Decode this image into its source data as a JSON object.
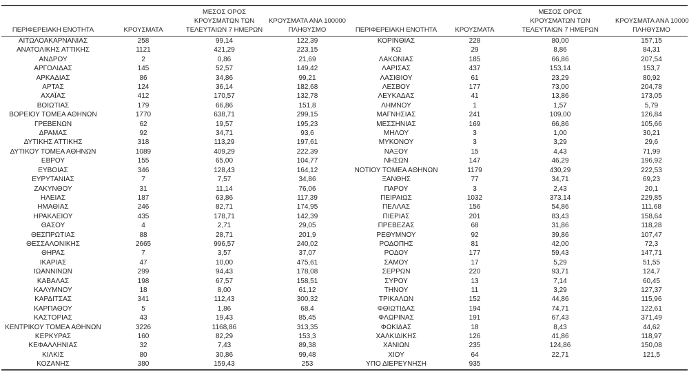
{
  "colors": {
    "text": "#262626",
    "line": "#4a4a4a",
    "background": "#ffffff"
  },
  "table": {
    "headers": {
      "region": "ΠΕΡΙΦΕΡΕΙΑΚΗ ΕΝΟΤΗΤΑ",
      "cases": "ΚΡΟΥΣΜΑΤΑ",
      "avg7_line1": "ΜΕΣΟΣ ΟΡΟΣ",
      "avg7_line2": "ΚΡΟΥΣΜΑΤΩΝ ΤΩΝ",
      "avg7_line3": "ΤΕΛΕΥΤΑΙΩΝ 7 ΗΜΕΡΩΝ",
      "per100k_line1": "ΚΡΟΥΣΜΑΤΑ ΑΝΑ 100000",
      "per100k_line2": "ΠΛΗΘΥΣΜΟ"
    },
    "left_rows": [
      {
        "region": "ΑΙΤΩΛΟΑΚΑΡΝΑΝΙΑΣ",
        "cases": "258",
        "avg7": "99,14",
        "per100k": "122,39"
      },
      {
        "region": "ΑΝΑΤΟΛΙΚΗΣ ΑΤΤΙΚΗΣ",
        "cases": "1121",
        "avg7": "421,29",
        "per100k": "223,15"
      },
      {
        "region": "ΑΝΔΡΟΥ",
        "cases": "2",
        "avg7": "0,86",
        "per100k": "21,69"
      },
      {
        "region": "ΑΡΓΟΛΙΔΑΣ",
        "cases": "145",
        "avg7": "52,57",
        "per100k": "149,42"
      },
      {
        "region": "ΑΡΚΑΔΙΑΣ",
        "cases": "86",
        "avg7": "34,86",
        "per100k": "99,21"
      },
      {
        "region": "ΑΡΤΑΣ",
        "cases": "124",
        "avg7": "36,14",
        "per100k": "182,68"
      },
      {
        "region": "ΑΧΑΪΑΣ",
        "cases": "412",
        "avg7": "170,57",
        "per100k": "132,78"
      },
      {
        "region": "ΒΟΙΩΤΙΑΣ",
        "cases": "179",
        "avg7": "66,86",
        "per100k": "151,8"
      },
      {
        "region": "ΒΟΡΕΙΟΥ ΤΟΜΕΑ ΑΘΗΝΩΝ",
        "cases": "1770",
        "avg7": "638,71",
        "per100k": "299,15"
      },
      {
        "region": "ΓΡΕΒΕΝΩΝ",
        "cases": "62",
        "avg7": "19,57",
        "per100k": "195,23"
      },
      {
        "region": "ΔΡΑΜΑΣ",
        "cases": "92",
        "avg7": "34,71",
        "per100k": "93,6"
      },
      {
        "region": "ΔΥΤΙΚΗΣ ΑΤΤΙΚΗΣ",
        "cases": "318",
        "avg7": "113,29",
        "per100k": "197,61"
      },
      {
        "region": "ΔΥΤΙΚΟΥ ΤΟΜΕΑ ΑΘΗΝΩΝ",
        "cases": "1089",
        "avg7": "409,29",
        "per100k": "222,39"
      },
      {
        "region": "ΕΒΡΟΥ",
        "cases": "155",
        "avg7": "65,00",
        "per100k": "104,77"
      },
      {
        "region": "ΕΥΒΟΙΑΣ",
        "cases": "346",
        "avg7": "128,43",
        "per100k": "164,12"
      },
      {
        "region": "ΕΥΡΥΤΑΝΙΑΣ",
        "cases": "7",
        "avg7": "7,57",
        "per100k": "34,86"
      },
      {
        "region": "ΖΑΚΥΝΘΟΥ",
        "cases": "31",
        "avg7": "11,14",
        "per100k": "76,06"
      },
      {
        "region": "ΗΛΕΙΑΣ",
        "cases": "187",
        "avg7": "63,86",
        "per100k": "117,39"
      },
      {
        "region": "ΗΜΑΘΙΑΣ",
        "cases": "246",
        "avg7": "82,71",
        "per100k": "174,95"
      },
      {
        "region": "ΗΡΑΚΛΕΙΟΥ",
        "cases": "435",
        "avg7": "178,71",
        "per100k": "142,39"
      },
      {
        "region": "ΘΑΣΟΥ",
        "cases": "4",
        "avg7": "2,71",
        "per100k": "29,05"
      },
      {
        "region": "ΘΕΣΠΡΩΤΙΑΣ",
        "cases": "88",
        "avg7": "28,71",
        "per100k": "201,9"
      },
      {
        "region": "ΘΕΣΣΑΛΟΝΙΚΗΣ",
        "cases": "2665",
        "avg7": "996,57",
        "per100k": "240,02"
      },
      {
        "region": "ΘΗΡΑΣ",
        "cases": "7",
        "avg7": "3,57",
        "per100k": "37,07"
      },
      {
        "region": "ΙΚΑΡΙΑΣ",
        "cases": "47",
        "avg7": "10,00",
        "per100k": "475,61"
      },
      {
        "region": "ΙΩΑΝΝΙΝΩΝ",
        "cases": "299",
        "avg7": "94,43",
        "per100k": "178,08"
      },
      {
        "region": "ΚΑΒΑΛΑΣ",
        "cases": "198",
        "avg7": "67,57",
        "per100k": "158,51"
      },
      {
        "region": "ΚΑΛΥΜΝΟΥ",
        "cases": "18",
        "avg7": "8,00",
        "per100k": "61,12"
      },
      {
        "region": "ΚΑΡΔΙΤΣΑΣ",
        "cases": "341",
        "avg7": "112,43",
        "per100k": "300,32"
      },
      {
        "region": "ΚΑΡΠΑΘΟΥ",
        "cases": "5",
        "avg7": "1,86",
        "per100k": "68,4"
      },
      {
        "region": "ΚΑΣΤΟΡΙΑΣ",
        "cases": "43",
        "avg7": "19,43",
        "per100k": "85,45"
      },
      {
        "region": "ΚΕΝΤΡΙΚΟΥ ΤΟΜΕΑ ΑΘΗΝΩΝ",
        "cases": "3226",
        "avg7": "1168,86",
        "per100k": "313,35"
      },
      {
        "region": "ΚΕΡΚΥΡΑΣ",
        "cases": "160",
        "avg7": "82,29",
        "per100k": "153,3"
      },
      {
        "region": "ΚΕΦΑΛΛΗΝΙΑΣ",
        "cases": "32",
        "avg7": "7,43",
        "per100k": "89,38"
      },
      {
        "region": "ΚΙΛΚΙΣ",
        "cases": "80",
        "avg7": "30,86",
        "per100k": "99,48"
      },
      {
        "region": "ΚΟΖΑΝΗΣ",
        "cases": "380",
        "avg7": "159,43",
        "per100k": "253"
      }
    ],
    "right_rows": [
      {
        "region": "ΚΟΡΙΝΘΙΑΣ",
        "cases": "228",
        "avg7": "80,00",
        "per100k": "157,15"
      },
      {
        "region": "ΚΩ",
        "cases": "29",
        "avg7": "8,86",
        "per100k": "84,31"
      },
      {
        "region": "ΛΑΚΩΝΙΑΣ",
        "cases": "185",
        "avg7": "66,86",
        "per100k": "207,54"
      },
      {
        "region": "ΛΑΡΙΣΑΣ",
        "cases": "437",
        "avg7": "153,14",
        "per100k": "153,7"
      },
      {
        "region": "ΛΑΣΙΘΙΟΥ",
        "cases": "61",
        "avg7": "23,29",
        "per100k": "80,92"
      },
      {
        "region": "ΛΕΣΒΟΥ",
        "cases": "177",
        "avg7": "73,00",
        "per100k": "204,78"
      },
      {
        "region": "ΛΕΥΚΑΔΑΣ",
        "cases": "41",
        "avg7": "13,86",
        "per100k": "173,05"
      },
      {
        "region": "ΛΗΜΝΟΥ",
        "cases": "1",
        "avg7": "1,57",
        "per100k": "5,79"
      },
      {
        "region": "ΜΑΓΝΗΣΙΑΣ",
        "cases": "241",
        "avg7": "109,00",
        "per100k": "126,84"
      },
      {
        "region": "ΜΕΣΣΗΝΙΑΣ",
        "cases": "169",
        "avg7": "66,86",
        "per100k": "105,66"
      },
      {
        "region": "ΜΗΛΟΥ",
        "cases": "3",
        "avg7": "1,00",
        "per100k": "30,21"
      },
      {
        "region": "ΜΥΚΟΝΟΥ",
        "cases": "3",
        "avg7": "3,29",
        "per100k": "29,6"
      },
      {
        "region": "ΝΑΞΟΥ",
        "cases": "15",
        "avg7": "4,43",
        "per100k": "71,99"
      },
      {
        "region": "ΝΗΣΩΝ",
        "cases": "147",
        "avg7": "46,29",
        "per100k": "196,92"
      },
      {
        "region": "ΝΟΤΙΟΥ ΤΟΜΕΑ ΑΘΗΝΩΝ",
        "cases": "1179",
        "avg7": "430,29",
        "per100k": "222,53"
      },
      {
        "region": "ΞΑΝΘΗΣ",
        "cases": "77",
        "avg7": "34,71",
        "per100k": "69,23"
      },
      {
        "region": "ΠΑΡΟΥ",
        "cases": "3",
        "avg7": "2,43",
        "per100k": "20,1"
      },
      {
        "region": "ΠΕΙΡΑΙΩΣ",
        "cases": "1032",
        "avg7": "373,14",
        "per100k": "229,85"
      },
      {
        "region": "ΠΕΛΛΑΣ",
        "cases": "156",
        "avg7": "54,86",
        "per100k": "111,68"
      },
      {
        "region": "ΠΙΕΡΙΑΣ",
        "cases": "201",
        "avg7": "83,43",
        "per100k": "158,64"
      },
      {
        "region": "ΠΡΕΒΕΖΑΣ",
        "cases": "68",
        "avg7": "31,86",
        "per100k": "118,28"
      },
      {
        "region": "ΡΕΘΥΜΝΟΥ",
        "cases": "92",
        "avg7": "39,86",
        "per100k": "107,47"
      },
      {
        "region": "ΡΟΔΟΠΗΣ",
        "cases": "81",
        "avg7": "42,00",
        "per100k": "72,3"
      },
      {
        "region": "ΡΟΔΟΥ",
        "cases": "177",
        "avg7": "59,43",
        "per100k": "147,71"
      },
      {
        "region": "ΣΑΜΟΥ",
        "cases": "17",
        "avg7": "5,29",
        "per100k": "51,55"
      },
      {
        "region": "ΣΕΡΡΩΝ",
        "cases": "220",
        "avg7": "93,71",
        "per100k": "124,7"
      },
      {
        "region": "ΣΥΡΟΥ",
        "cases": "13",
        "avg7": "7,14",
        "per100k": "60,45"
      },
      {
        "region": "ΤΗΝΟΥ",
        "cases": "11",
        "avg7": "3,29",
        "per100k": "127,37"
      },
      {
        "region": "ΤΡΙΚΑΛΩΝ",
        "cases": "152",
        "avg7": "44,86",
        "per100k": "115,96"
      },
      {
        "region": "ΦΘΙΩΤΙΔΑΣ",
        "cases": "194",
        "avg7": "74,71",
        "per100k": "122,61"
      },
      {
        "region": "ΦΛΩΡΙΝΑΣ",
        "cases": "191",
        "avg7": "67,43",
        "per100k": "371,49"
      },
      {
        "region": "ΦΩΚΙΔΑΣ",
        "cases": "18",
        "avg7": "8,43",
        "per100k": "44,62"
      },
      {
        "region": "ΧΑΛΚΙΔΙΚΗΣ",
        "cases": "126",
        "avg7": "41,86",
        "per100k": "118,97"
      },
      {
        "region": "ΧΑΝΙΩΝ",
        "cases": "235",
        "avg7": "124,86",
        "per100k": "150,08"
      },
      {
        "region": "ΧΙΟΥ",
        "cases": "64",
        "avg7": "22,71",
        "per100k": "121,5"
      },
      {
        "region": "ΥΠΟ ΔΙΕΡΕΥΝΗΣΗ",
        "cases": "935",
        "avg7": "",
        "per100k": ""
      }
    ]
  }
}
